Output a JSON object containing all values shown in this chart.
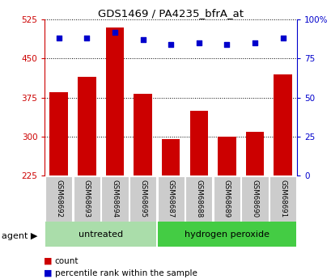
{
  "title": "GDS1469 / PA4235_bfrA_at",
  "samples": [
    "GSM68692",
    "GSM68693",
    "GSM68694",
    "GSM68695",
    "GSM68687",
    "GSM68688",
    "GSM68689",
    "GSM68690",
    "GSM68691"
  ],
  "counts": [
    385,
    415,
    510,
    383,
    295,
    350,
    300,
    310,
    420
  ],
  "percentiles": [
    88,
    88,
    92,
    87,
    84,
    85,
    84,
    85,
    88
  ],
  "ylim_left": [
    225,
    525
  ],
  "ylim_right": [
    0,
    100
  ],
  "yticks_left": [
    225,
    300,
    375,
    450,
    525
  ],
  "yticks_right": [
    0,
    25,
    50,
    75,
    100
  ],
  "bar_color": "#cc0000",
  "dot_color": "#0000cc",
  "bar_width": 0.65,
  "grid_color": "#000000",
  "bg_color_plot": "#ffffff",
  "tick_label_area_color": "#cccccc",
  "untreated_color": "#aaddaa",
  "peroxide_color": "#44cc44",
  "untreated_indices": [
    0,
    1,
    2,
    3
  ],
  "peroxide_indices": [
    4,
    5,
    6,
    7,
    8
  ],
  "untreated_label": "untreated",
  "peroxide_label": "hydrogen peroxide",
  "agent_label": "agent",
  "legend_count_label": "count",
  "legend_pct_label": "percentile rank within the sample"
}
